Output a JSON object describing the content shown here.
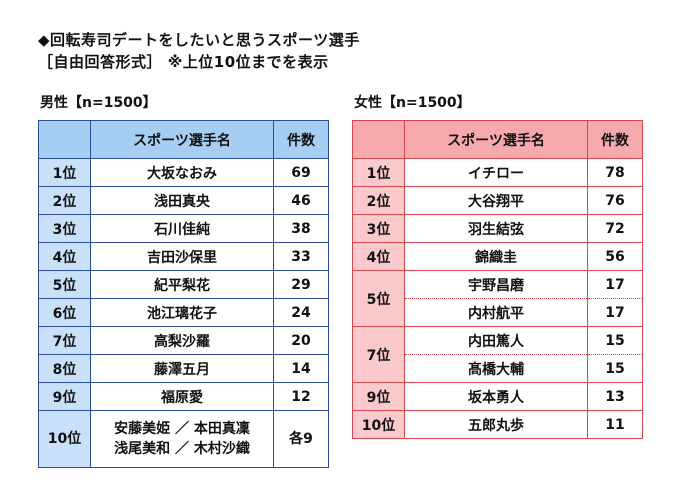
{
  "title_line1": "◆回転寿司デートをしたいと思うスポーツ選手",
  "title_line2": "［自由回答形式］ ※上位10位までを表示",
  "male": {
    "label": "男性【n=1500】",
    "header": [
      "",
      "スポーツ選手名",
      "件数"
    ],
    "rows": [
      {
        "rank": "1位",
        "name": "大坂なおみ",
        "count": "69"
      },
      {
        "rank": "2位",
        "name": "浅田真央",
        "count": "46"
      },
      {
        "rank": "3位",
        "name": "石川佳純",
        "count": "38"
      },
      {
        "rank": "4位",
        "name": "吉田沙保里",
        "count": "33"
      },
      {
        "rank": "5位",
        "name": "紀平梨花",
        "count": "29"
      },
      {
        "rank": "6位",
        "name": "池江璃花子",
        "count": "24"
      },
      {
        "rank": "7位",
        "name": "高梨沙羅",
        "count": "20"
      },
      {
        "rank": "8位",
        "name": "藤澤五月",
        "count": "14"
      },
      {
        "rank": "9位",
        "name": "福原愛",
        "count": "12"
      },
      {
        "rank": "10位",
        "name_line1": "安藤美姫 ／ 本田真凜",
        "name_line2": "浅尾美和 ／ 木村沙織",
        "count": "各9"
      }
    ]
  },
  "female": {
    "label": "女性【n=1500】",
    "header": [
      "",
      "スポーツ選手名",
      "件数"
    ],
    "rows": [
      {
        "rank": "1位",
        "name": "イチロー",
        "count": "78"
      },
      {
        "rank": "2位",
        "name": "大谷翔平",
        "count": "76"
      },
      {
        "rank": "3位",
        "name": "羽生結弦",
        "count": "72"
      },
      {
        "rank": "4位",
        "name": "錦織圭",
        "count": "56"
      },
      {
        "rank": "5位",
        "name": "宇野昌磨",
        "count": "17"
      },
      {
        "rank": "",
        "name": "内村航平",
        "count": "17"
      },
      {
        "rank": "7位",
        "name": "内田篤人",
        "count": "15"
      },
      {
        "rank": "",
        "name": "髙橋大輔",
        "count": "15"
      },
      {
        "rank": "9位",
        "name": "坂本勇人",
        "count": "13"
      },
      {
        "rank": "10位",
        "name": "五郎丸歩",
        "count": "11"
      }
    ]
  },
  "colors": {
    "male_border": "#2c4c9c",
    "male_header": "#a6cdf2",
    "male_rank": "#c8e1f8",
    "female_border": "#d9464e",
    "female_header": "#f5a9ac",
    "female_rank": "#f9c9cb"
  }
}
